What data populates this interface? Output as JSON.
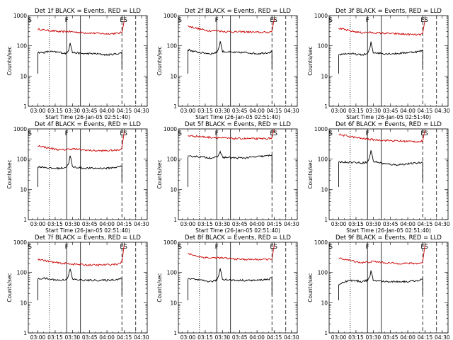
{
  "chart_data": [
    {
      "type": "line",
      "title": "Det 1f BLACK = Events, RED = LLD",
      "ylabel": "Counts/sec",
      "xlabel": "Start Time (26-Jan-05 02:51:40)",
      "yscale": "log",
      "ylim": [
        1,
        1000
      ],
      "x_ticks": [
        "03:00",
        "03:15",
        "03:30",
        "03:45",
        "04:00",
        "04:15",
        "04:30"
      ],
      "y_ticks": [
        "1",
        "10",
        "100",
        "1000"
      ],
      "markers": [
        "S",
        "F",
        "E",
        "S"
      ],
      "series": [
        {
          "color": "#cc0000",
          "x": [
            "03:00",
            "03:10",
            "03:20",
            "03:25",
            "03:30",
            "03:40",
            "03:50",
            "04:00",
            "04:10",
            "04:13",
            "04:15"
          ],
          "values": [
            350,
            320,
            290,
            300,
            290,
            270,
            260,
            250,
            260,
            280,
            700
          ]
        },
        {
          "color": "#000000",
          "x": [
            "03:00",
            "03:05",
            "03:10",
            "03:20",
            "03:25",
            "03:27",
            "03:28",
            "03:29",
            "03:30",
            "03:40",
            "03:50",
            "04:00",
            "04:10",
            "04:13"
          ],
          "values": [
            60,
            60,
            65,
            60,
            55,
            80,
            130,
            90,
            60,
            55,
            55,
            50,
            55,
            60
          ]
        }
      ]
    },
    {
      "type": "line",
      "title": "Det 2f BLACK = Events, RED = LLD",
      "ylabel": "Counts/sec",
      "xlabel": "Start Time (26-Jan-05 02:51:40)",
      "yscale": "log",
      "ylim": [
        1,
        1000
      ],
      "x_ticks": [
        "03:00",
        "03:15",
        "03:30",
        "03:45",
        "04:00",
        "04:15",
        "04:30"
      ],
      "y_ticks": [
        "1",
        "10",
        "100",
        "1000"
      ],
      "markers": [
        "S",
        "F",
        "E",
        "S"
      ],
      "series": [
        {
          "color": "#cc0000",
          "x": [
            "03:00",
            "03:10",
            "03:20",
            "03:25",
            "03:30",
            "03:40",
            "03:50",
            "04:00",
            "04:10",
            "04:13",
            "04:15"
          ],
          "values": [
            450,
            360,
            310,
            320,
            300,
            290,
            290,
            280,
            280,
            300,
            800
          ]
        },
        {
          "color": "#000000",
          "x": [
            "03:00",
            "03:05",
            "03:10",
            "03:20",
            "03:25",
            "03:27",
            "03:28",
            "03:29",
            "03:30",
            "03:40",
            "03:50",
            "04:00",
            "04:10",
            "04:13"
          ],
          "values": [
            75,
            65,
            60,
            55,
            60,
            90,
            140,
            100,
            65,
            60,
            60,
            55,
            60,
            65
          ]
        }
      ]
    },
    {
      "type": "line",
      "title": "Det 3f BLACK = Events, RED = LLD",
      "ylabel": "Counts/sec",
      "xlabel": "Start Time (26-Jan-05 02:51:40)",
      "yscale": "log",
      "ylim": [
        1,
        1000
      ],
      "x_ticks": [
        "03:00",
        "03:15",
        "03:30",
        "03:45",
        "04:00",
        "04:15",
        "04:30"
      ],
      "y_ticks": [
        "1",
        "10",
        "100",
        "1000"
      ],
      "markers": [
        "S",
        "F",
        "E",
        "S"
      ],
      "series": [
        {
          "color": "#cc0000",
          "x": [
            "03:00",
            "03:10",
            "03:20",
            "03:25",
            "03:30",
            "03:40",
            "03:50",
            "04:00",
            "04:10",
            "04:13",
            "04:15"
          ],
          "values": [
            380,
            310,
            270,
            280,
            270,
            260,
            250,
            240,
            230,
            250,
            700
          ]
        },
        {
          "color": "#000000",
          "x": [
            "03:00",
            "03:05",
            "03:10",
            "03:20",
            "03:25",
            "03:27",
            "03:28",
            "03:29",
            "03:30",
            "03:40",
            "03:50",
            "04:00",
            "04:10",
            "04:13"
          ],
          "values": [
            50,
            55,
            55,
            50,
            55,
            80,
            130,
            90,
            60,
            55,
            55,
            60,
            65,
            70
          ]
        }
      ]
    },
    {
      "type": "line",
      "title": "Det 4f BLACK = Events, RED = LLD",
      "ylabel": "Counts/sec",
      "xlabel": "Start Time (26-Jan-05 02:51:40)",
      "yscale": "log",
      "ylim": [
        1,
        1000
      ],
      "x_ticks": [
        "03:00",
        "03:15",
        "03:30",
        "03:45",
        "04:00",
        "04:15",
        "04:30"
      ],
      "y_ticks": [
        "1",
        "10",
        "100",
        "1000"
      ],
      "markers": [
        "S",
        "F",
        "E",
        "S"
      ],
      "series": [
        {
          "color": "#cc0000",
          "x": [
            "03:00",
            "03:10",
            "03:20",
            "03:25",
            "03:30",
            "03:40",
            "03:50",
            "04:00",
            "04:10",
            "04:13",
            "04:15"
          ],
          "values": [
            280,
            230,
            200,
            210,
            220,
            200,
            190,
            190,
            200,
            230,
            800
          ]
        },
        {
          "color": "#000000",
          "x": [
            "03:00",
            "03:05",
            "03:10",
            "03:20",
            "03:25",
            "03:27",
            "03:28",
            "03:29",
            "03:30",
            "03:40",
            "03:50",
            "04:00",
            "04:10",
            "04:13"
          ],
          "values": [
            55,
            55,
            50,
            50,
            55,
            80,
            130,
            90,
            55,
            50,
            50,
            50,
            55,
            60
          ]
        }
      ]
    },
    {
      "type": "line",
      "title": "Det 5f BLACK = Events, RED = LLD",
      "ylabel": "Counts/sec",
      "xlabel": "Start Time (26-Jan-05 02:51:40)",
      "yscale": "log",
      "ylim": [
        1,
        1000
      ],
      "x_ticks": [
        "03:00",
        "03:15",
        "03:30",
        "03:45",
        "04:00",
        "04:15",
        "04:30"
      ],
      "y_ticks": [
        "1",
        "10",
        "100",
        "1000"
      ],
      "markers": [
        "S",
        "F",
        "E",
        "S"
      ],
      "series": [
        {
          "color": "#cc0000",
          "x": [
            "03:00",
            "03:10",
            "03:20",
            "03:25",
            "03:30",
            "03:40",
            "03:50",
            "04:00",
            "04:10",
            "04:13",
            "04:15"
          ],
          "values": [
            600,
            560,
            520,
            520,
            500,
            480,
            480,
            470,
            480,
            500,
            1000
          ]
        },
        {
          "color": "#000000",
          "x": [
            "03:00",
            "03:05",
            "03:10",
            "03:20",
            "03:25",
            "03:27",
            "03:28",
            "03:29",
            "03:30",
            "03:40",
            "03:50",
            "04:00",
            "04:10",
            "04:13"
          ],
          "values": [
            120,
            125,
            120,
            110,
            115,
            140,
            180,
            150,
            115,
            110,
            110,
            120,
            130,
            140
          ]
        }
      ]
    },
    {
      "type": "line",
      "title": "Det 6f BLACK = Events, RED = LLD",
      "ylabel": "Counts/sec",
      "xlabel": "Start Time (26-Jan-05 02:51:40)",
      "yscale": "log",
      "ylim": [
        1,
        1000
      ],
      "x_ticks": [
        "03:00",
        "03:15",
        "03:30",
        "03:45",
        "04:00",
        "04:15",
        "04:30"
      ],
      "y_ticks": [
        "1",
        "10",
        "100",
        "1000"
      ],
      "markers": [
        "S",
        "F",
        "E",
        "S"
      ],
      "series": [
        {
          "color": "#cc0000",
          "x": [
            "03:00",
            "03:10",
            "03:20",
            "03:25",
            "03:30",
            "03:40",
            "03:50",
            "04:00",
            "04:10",
            "04:13",
            "04:15"
          ],
          "values": [
            650,
            560,
            480,
            460,
            440,
            420,
            400,
            390,
            380,
            390,
            900
          ]
        },
        {
          "color": "#000000",
          "x": [
            "03:00",
            "03:05",
            "03:10",
            "03:20",
            "03:25",
            "03:27",
            "03:28",
            "03:29",
            "03:30",
            "03:40",
            "03:50",
            "04:00",
            "04:10",
            "04:13"
          ],
          "values": [
            80,
            80,
            80,
            75,
            80,
            120,
            200,
            140,
            85,
            70,
            65,
            70,
            75,
            80
          ]
        }
      ]
    },
    {
      "type": "line",
      "title": "Det 7f BLACK = Events, RED = LLD",
      "ylabel": "Counts/sec",
      "xlabel": "Start Time (26-Jan-05 02:51:40)",
      "yscale": "log",
      "ylim": [
        1,
        1000
      ],
      "x_ticks": [
        "03:00",
        "03:15",
        "03:30",
        "03:45",
        "04:00",
        "04:15",
        "04:30"
      ],
      "y_ticks": [
        "1",
        "10",
        "100",
        "1000"
      ],
      "markers": [
        "S",
        "F",
        "E",
        "S"
      ],
      "series": [
        {
          "color": "#cc0000",
          "x": [
            "03:00",
            "03:10",
            "03:20",
            "03:25",
            "03:30",
            "03:40",
            "03:50",
            "04:00",
            "04:10",
            "04:13",
            "04:15"
          ],
          "values": [
            280,
            230,
            200,
            200,
            190,
            180,
            175,
            180,
            190,
            220,
            800
          ]
        },
        {
          "color": "#000000",
          "x": [
            "03:00",
            "03:05",
            "03:10",
            "03:20",
            "03:25",
            "03:27",
            "03:28",
            "03:29",
            "03:30",
            "03:40",
            "03:50",
            "04:00",
            "04:10",
            "04:13"
          ],
          "values": [
            60,
            65,
            60,
            55,
            60,
            90,
            130,
            95,
            60,
            55,
            55,
            55,
            60,
            65
          ]
        }
      ]
    },
    {
      "type": "line",
      "title": "Det 8f BLACK = Events, RED = LLD",
      "ylabel": "Counts/sec",
      "xlabel": "Start Time (26-Jan-05 02:51:40)",
      "yscale": "log",
      "ylim": [
        1,
        1000
      ],
      "x_ticks": [
        "03:00",
        "03:15",
        "03:30",
        "03:45",
        "04:00",
        "04:15",
        "04:30"
      ],
      "y_ticks": [
        "1",
        "10",
        "100",
        "1000"
      ],
      "markers": [
        "S",
        "F",
        "E",
        "S"
      ],
      "series": [
        {
          "color": "#cc0000",
          "x": [
            "03:00",
            "03:10",
            "03:20",
            "03:25",
            "03:30",
            "03:40",
            "03:50",
            "04:00",
            "04:10",
            "04:13",
            "04:15"
          ],
          "values": [
            420,
            330,
            300,
            310,
            300,
            280,
            270,
            270,
            270,
            290,
            800
          ]
        },
        {
          "color": "#000000",
          "x": [
            "03:00",
            "03:05",
            "03:10",
            "03:20",
            "03:25",
            "03:27",
            "03:28",
            "03:29",
            "03:30",
            "03:40",
            "03:50",
            "04:00",
            "04:10",
            "04:13"
          ],
          "values": [
            60,
            60,
            55,
            50,
            55,
            85,
            140,
            95,
            60,
            55,
            55,
            55,
            60,
            65
          ]
        }
      ]
    },
    {
      "type": "line",
      "title": "Det 9f BLACK = Events, RED = LLD",
      "ylabel": "Counts/sec",
      "xlabel": "Start Time (26-Jan-05 02:51:40)",
      "yscale": "log",
      "ylim": [
        1,
        1000
      ],
      "x_ticks": [
        "03:00",
        "03:15",
        "03:30",
        "03:45",
        "04:00",
        "04:15",
        "04:30"
      ],
      "y_ticks": [
        "1",
        "10",
        "100",
        "1000"
      ],
      "markers": [
        "S",
        "F",
        "E",
        "S"
      ],
      "series": [
        {
          "color": "#cc0000",
          "x": [
            "03:00",
            "03:10",
            "03:20",
            "03:25",
            "03:30",
            "03:40",
            "03:50",
            "04:00",
            "04:10",
            "04:13",
            "04:15"
          ],
          "values": [
            300,
            250,
            210,
            220,
            230,
            210,
            200,
            200,
            200,
            220,
            800
          ]
        },
        {
          "color": "#000000",
          "x": [
            "03:00",
            "03:05",
            "03:10",
            "03:20",
            "03:25",
            "03:27",
            "03:28",
            "03:29",
            "03:30",
            "03:40",
            "03:50",
            "04:00",
            "04:10",
            "04:13"
          ],
          "values": [
            40,
            50,
            55,
            50,
            55,
            70,
            110,
            80,
            55,
            50,
            50,
            50,
            55,
            60
          ]
        }
      ]
    }
  ]
}
